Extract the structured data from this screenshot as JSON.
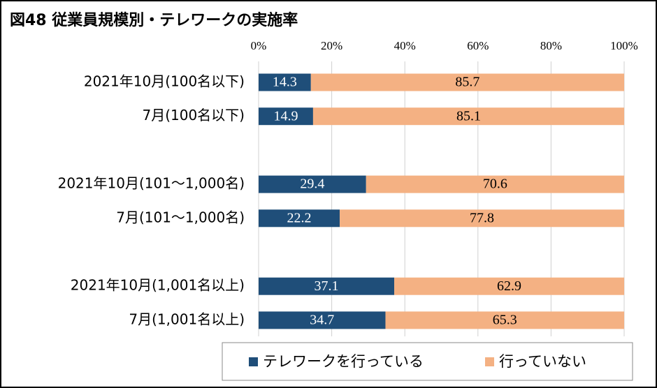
{
  "chart_data": {
    "type": "stacked-bar-horizontal",
    "title": "図48 従業員規模別・テレワークの実施率",
    "categories": [
      "2021年10月(100名以下)",
      "7月(100名以下)",
      null,
      "2021年10月(101～1,000名)",
      "7月(101～1,000名)",
      null,
      "2021年10月(1,001名以上)",
      "7月(1,001名以上)"
    ],
    "series": [
      {
        "name": "テレワークを行っている",
        "color": "#1f4e79",
        "values": [
          14.3,
          14.9,
          null,
          29.4,
          22.2,
          null,
          37.1,
          34.7
        ]
      },
      {
        "name": "行っていない",
        "color": "#f4b183",
        "values": [
          85.7,
          85.1,
          null,
          70.6,
          77.8,
          null,
          62.9,
          65.3
        ]
      }
    ],
    "xlim": [
      0,
      100
    ],
    "xticks": [
      {
        "value": 0,
        "label": "0%"
      },
      {
        "value": 20,
        "label": "20%"
      },
      {
        "value": 40,
        "label": "40%"
      },
      {
        "value": 60,
        "label": "60%"
      },
      {
        "value": 80,
        "label": "80%"
      },
      {
        "value": 100,
        "label": "100%"
      }
    ],
    "grid": true,
    "legend": "bottom"
  }
}
